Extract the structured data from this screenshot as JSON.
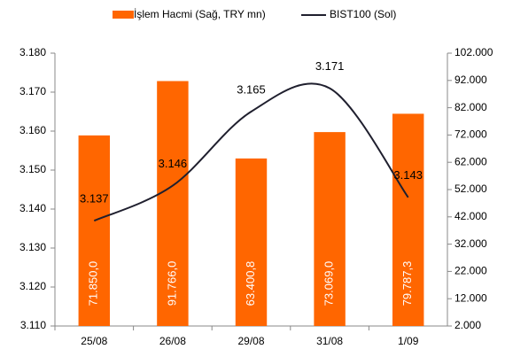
{
  "chart_data": {
    "type": "bar",
    "categories": [
      "25/08",
      "26/08",
      "29/08",
      "31/08",
      "1/09"
    ],
    "series": [
      {
        "name": "İşlem Hacmi (Sağ, TRY mn)",
        "type": "bar",
        "axis": "y2",
        "color": "#ff6600",
        "values": [
          71850.0,
          91766.0,
          63400.8,
          73069.0,
          79787.3
        ],
        "value_labels": [
          "71.850,0",
          "91.766,0",
          "63.400,8",
          "73.069,0",
          "79.787,3"
        ]
      },
      {
        "name": "BIST100 (Sol)",
        "type": "line",
        "color": "#1f1f2e",
        "values": [
          3.137,
          3.146,
          3.165,
          3.171,
          3.143
        ]
      }
    ],
    "ylim": [
      3.11,
      3.18
    ],
    "yticks": [
      {
        "value": 3.11,
        "label": "3.110"
      },
      {
        "value": 3.12,
        "label": "3.120"
      },
      {
        "value": 3.13,
        "label": "3.130"
      },
      {
        "value": 3.14,
        "label": "3.140"
      },
      {
        "value": 3.15,
        "label": "3.150"
      },
      {
        "value": 3.16,
        "label": "3.160"
      },
      {
        "value": 3.17,
        "label": "3.170"
      },
      {
        "value": 3.18,
        "label": "3.180"
      }
    ],
    "y2lim": [
      2000,
      102000
    ],
    "y2ticks": [
      {
        "value": 2000,
        "label": "2.000"
      },
      {
        "value": 12000,
        "label": "12.000"
      },
      {
        "value": 22000,
        "label": "22.000"
      },
      {
        "value": 32000,
        "label": "32.000"
      },
      {
        "value": 42000,
        "label": "42.000"
      },
      {
        "value": 52000,
        "label": "52.000"
      },
      {
        "value": 62000,
        "label": "62.000"
      },
      {
        "value": 72000,
        "label": "72.000"
      },
      {
        "value": 82000,
        "label": "82.000"
      },
      {
        "value": 92000,
        "label": "92.000"
      },
      {
        "value": 102000,
        "label": "102.000"
      }
    ],
    "legend": "top"
  }
}
